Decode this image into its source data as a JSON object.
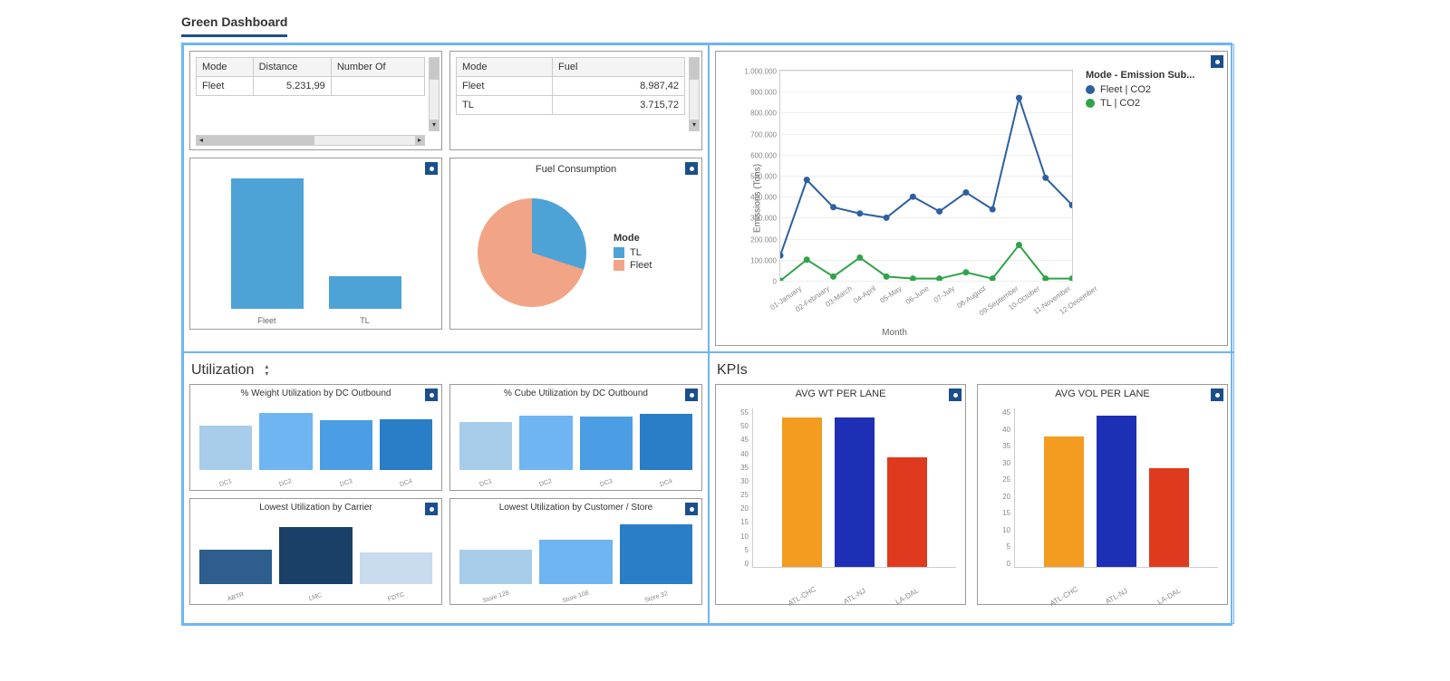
{
  "tab_title": "Green Dashboard",
  "table_md": {
    "columns": [
      "Mode",
      "Distance",
      "Number Of"
    ],
    "rows": [
      [
        "Fleet",
        "5.231,99",
        ""
      ]
    ]
  },
  "table_mf": {
    "columns": [
      "Mode",
      "Fuel"
    ],
    "rows": [
      [
        "Fleet",
        "8.987,42"
      ],
      [
        "TL",
        "3.715,72"
      ]
    ]
  },
  "bar_fleet_tl": {
    "categories": [
      "Fleet",
      "TL"
    ],
    "values": [
      100,
      25
    ],
    "colors": [
      "#4da3d6",
      "#4da3d6"
    ],
    "ymax": 100
  },
  "pie_fuel": {
    "title": "Fuel Consumption",
    "legend_title": "Mode",
    "slices": [
      {
        "label": "TL",
        "value": 30,
        "color": "#4da3d6"
      },
      {
        "label": "Fleet",
        "value": 70,
        "color": "#f2a486"
      }
    ]
  },
  "line_emissions": {
    "ylabel": "Emissions (Tons)",
    "xlabel": "Month",
    "legend_title": "Mode - Emission Sub...",
    "ymin": 0,
    "ymax": 1000000,
    "ystep": 100000,
    "x_categories": [
      "01-January",
      "02-February",
      "03-March",
      "04-April",
      "05-May",
      "06-June",
      "07-July",
      "08-August",
      "09-September",
      "10-October",
      "11-November",
      "12-December"
    ],
    "series": [
      {
        "name": "Fleet | CO2",
        "color": "#2e5fa0",
        "values": [
          120000,
          480000,
          350000,
          320000,
          300000,
          400000,
          330000,
          420000,
          340000,
          870000,
          490000,
          360000
        ]
      },
      {
        "name": "TL | CO2",
        "color": "#2fa34a",
        "values": [
          0,
          100000,
          20000,
          110000,
          20000,
          10000,
          10000,
          40000,
          10000,
          170000,
          10000,
          10000
        ]
      }
    ]
  },
  "utilization_header": "Utilization",
  "kpi_header": "KPIs",
  "util_weight": {
    "title": "% Weight Utilization by DC Outbound",
    "cats": [
      "DC1",
      "DC2",
      "DC3",
      "DC4"
    ],
    "vals": [
      70,
      90,
      78,
      80
    ],
    "colors": [
      "#a7cdea",
      "#6fb5f2",
      "#4b9ee3",
      "#2a7dc7"
    ],
    "ymax": 100
  },
  "util_cube": {
    "title": "% Cube Utilization by DC Outbound",
    "cats": [
      "DC1",
      "DC2",
      "DC3",
      "DC4"
    ],
    "vals": [
      76,
      86,
      84,
      88
    ],
    "colors": [
      "#a7cdea",
      "#6fb5f2",
      "#4b9ee3",
      "#2a7dc7"
    ],
    "ymax": 100
  },
  "util_carrier": {
    "title": "Lowest Utilization by Carrier",
    "cats": [
      "ABTR",
      "LMC",
      "FDTC"
    ],
    "vals": [
      55,
      90,
      50
    ],
    "colors": [
      "#2d5e8d",
      "#1b4068",
      "#c9dcef"
    ],
    "ymax": 100
  },
  "util_customer": {
    "title": "Lowest Utilization by Customer / Store",
    "cats": [
      "Store 128",
      "Store 108",
      "Store 32"
    ],
    "vals": [
      55,
      70,
      95
    ],
    "colors": [
      "#a7cdea",
      "#6fb5f2",
      "#2a7dc7"
    ],
    "ymax": 100
  },
  "kpi_wt": {
    "title": "AVG WT PER LANE",
    "cats": [
      "ATL-CHC",
      "ATL-NJ",
      "LA-DAL"
    ],
    "vals": [
      52,
      52,
      38
    ],
    "colors": [
      "#f39c1f",
      "#1d2fb5",
      "#e03a1e"
    ],
    "ymax": 55,
    "ystep": 5
  },
  "kpi_vol": {
    "title": "AVG VOL PER LANE",
    "cats": [
      "ATL-CHC",
      "ATL-NJ",
      "LA-DAL"
    ],
    "vals": [
      37,
      43,
      28
    ],
    "colors": [
      "#f39c1f",
      "#1d2fb5",
      "#e03a1e"
    ],
    "ymax": 45,
    "ystep": 5
  }
}
